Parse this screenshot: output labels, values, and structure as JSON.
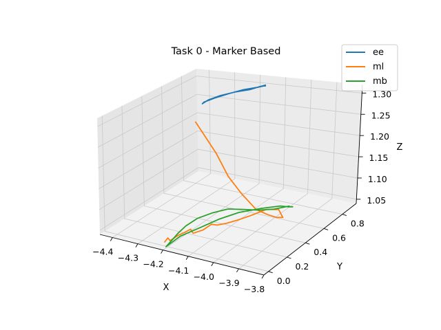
{
  "chart_data": {
    "type": "line",
    "projection": "3d",
    "title": "Task 0 - Marker Based",
    "xlabel": "X",
    "ylabel": "Y",
    "zlabel": "Z",
    "xlim": [
      -4.45,
      -3.8
    ],
    "ylim": [
      -0.05,
      0.95
    ],
    "zlim": [
      1.04,
      1.32
    ],
    "xticks": [
      -4.4,
      -4.3,
      -4.2,
      -4.1,
      -4.0,
      -3.9,
      -3.8
    ],
    "xtick_labels": [
      "−4.4",
      "−4.3",
      "−4.2",
      "−4.1",
      "−4.0",
      "−3.9",
      "−3.8"
    ],
    "yticks": [
      0.0,
      0.2,
      0.4,
      0.6,
      0.8
    ],
    "ytick_labels": [
      "0.0",
      "0.2",
      "0.4",
      "0.6",
      "0.8"
    ],
    "zticks": [
      1.05,
      1.1,
      1.15,
      1.2,
      1.25,
      1.3
    ],
    "ztick_labels": [
      "1.05",
      "1.10",
      "1.15",
      "1.20",
      "1.25",
      "1.30"
    ],
    "legend_position": "top-right",
    "series": [
      {
        "name": "ee",
        "color": "#1f77b4",
        "points": [
          [
            -4.16,
            0.9,
            1.303
          ],
          [
            -4.18,
            0.89,
            1.299
          ],
          [
            -4.21,
            0.87,
            1.292
          ],
          [
            -4.26,
            0.85,
            1.285
          ],
          [
            -4.31,
            0.83,
            1.275
          ],
          [
            -4.35,
            0.81,
            1.263
          ],
          [
            -4.37,
            0.8,
            1.253
          ],
          [
            -4.365,
            0.805,
            1.257
          ],
          [
            -4.33,
            0.82,
            1.268
          ],
          [
            -4.28,
            0.84,
            1.281
          ],
          [
            -4.23,
            0.86,
            1.292
          ],
          [
            -4.18,
            0.88,
            1.299
          ],
          [
            -4.165,
            0.895,
            1.301
          ],
          [
            -4.162,
            0.905,
            1.3
          ]
        ]
      },
      {
        "name": "ml",
        "color": "#ff7f0e",
        "points": [
          [
            -4.28,
            0.5,
            1.255
          ],
          [
            -4.18,
            0.45,
            1.195
          ],
          [
            -4.12,
            0.42,
            1.15
          ],
          [
            -4.06,
            0.4,
            1.12
          ],
          [
            -4.0,
            0.4,
            1.09
          ],
          [
            -3.96,
            0.42,
            1.08
          ],
          [
            -3.94,
            0.46,
            1.07
          ],
          [
            -3.93,
            0.5,
            1.065
          ],
          [
            -3.94,
            0.48,
            1.085
          ],
          [
            -3.96,
            0.4,
            1.095
          ],
          [
            -3.99,
            0.32,
            1.09
          ],
          [
            -4.02,
            0.26,
            1.085
          ],
          [
            -4.05,
            0.22,
            1.08
          ],
          [
            -4.08,
            0.2,
            1.075
          ],
          [
            -4.095,
            0.18,
            1.078
          ],
          [
            -4.12,
            0.16,
            1.065
          ],
          [
            -4.145,
            0.12,
            1.06
          ],
          [
            -4.155,
            0.12,
            1.068
          ],
          [
            -4.17,
            0.1,
            1.062
          ],
          [
            -4.19,
            0.08,
            1.055
          ],
          [
            -4.2,
            0.06,
            1.05
          ],
          [
            -4.21,
            0.05,
            1.045
          ],
          [
            -4.215,
            0.04,
            1.052
          ],
          [
            -4.22,
            0.02,
            1.045
          ]
        ]
      },
      {
        "name": "mb",
        "color": "#2ca02c",
        "points": [
          [
            -3.95,
            0.62,
            1.07
          ],
          [
            -3.965,
            0.5,
            1.08
          ],
          [
            -3.99,
            0.4,
            1.09
          ],
          [
            -4.02,
            0.32,
            1.1
          ],
          [
            -4.06,
            0.26,
            1.105
          ],
          [
            -4.1,
            0.2,
            1.1
          ],
          [
            -4.14,
            0.15,
            1.09
          ],
          [
            -4.17,
            0.11,
            1.075
          ],
          [
            -4.19,
            0.08,
            1.06
          ],
          [
            -4.205,
            0.05,
            1.045
          ],
          [
            -4.215,
            0.02,
            1.035
          ],
          [
            -4.18,
            0.08,
            1.055
          ],
          [
            -4.13,
            0.15,
            1.07
          ],
          [
            -4.09,
            0.25,
            1.08
          ],
          [
            -4.05,
            0.35,
            1.085
          ],
          [
            -4.0,
            0.45,
            1.085
          ],
          [
            -3.96,
            0.55,
            1.08
          ],
          [
            -3.945,
            0.6,
            1.072
          ],
          [
            -3.94,
            0.63,
            1.068
          ]
        ]
      }
    ]
  }
}
